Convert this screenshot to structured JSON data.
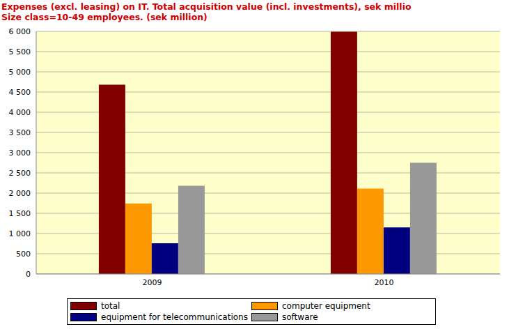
{
  "chart_data": {
    "type": "bar",
    "title": "Expenses (excl. leasing) on IT. Total acquisition value (incl. investments), sek millio",
    "subtitle": "Size class=10-49 employees. (sek million)",
    "categories": [
      "2009",
      "2010"
    ],
    "series": [
      {
        "name": "total",
        "color": "#800000",
        "values": [
          4680,
          5990
        ]
      },
      {
        "name": "computer equipment",
        "color": "#ff9900",
        "values": [
          1740,
          2110
        ]
      },
      {
        "name": "equipment for telecommunications",
        "color": "#000080",
        "values": [
          760,
          1150
        ]
      },
      {
        "name": "software",
        "color": "#999999",
        "values": [
          2180,
          2750
        ]
      }
    ],
    "ylim": [
      0,
      6000
    ],
    "yticks": [
      0,
      500,
      {
        "value": 1000,
        "label": "1 000"
      },
      {
        "value": 1500,
        "label": "1 500"
      },
      {
        "value": 2000,
        "label": "2 000"
      },
      {
        "value": 2500,
        "label": "2 500"
      },
      {
        "value": 3000,
        "label": "3 000"
      },
      {
        "value": 3500,
        "label": "3 500"
      },
      {
        "value": 4000,
        "label": "4 000"
      },
      {
        "value": 4500,
        "label": "4 500"
      },
      {
        "value": 5000,
        "label": "5 000"
      },
      {
        "value": 5500,
        "label": "5 500"
      },
      {
        "value": 6000,
        "label": "6 000"
      }
    ],
    "grid": true,
    "legend": "bottom"
  }
}
